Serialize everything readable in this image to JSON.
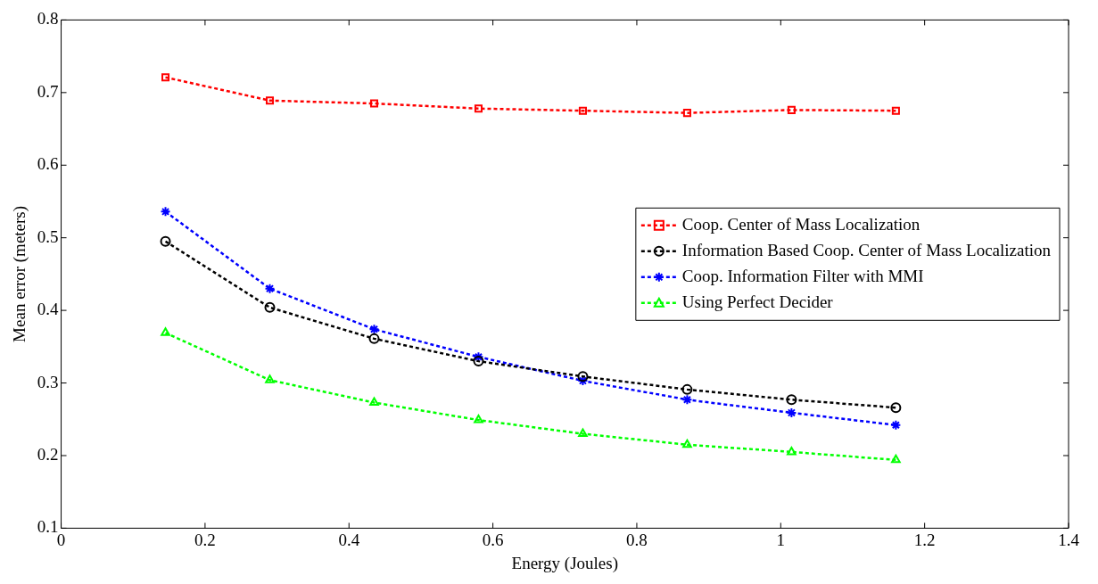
{
  "chart_data": {
    "type": "line",
    "xlabel": "Energy (Joules)",
    "ylabel": "Mean error (meters)",
    "x": [
      0.145,
      0.29,
      0.435,
      0.58,
      0.725,
      0.87,
      1.015,
      1.16
    ],
    "series": [
      {
        "name": "Coop. Center of Mass Localization",
        "color": "#ff0000",
        "marker": "square",
        "values": [
          0.721,
          0.689,
          0.685,
          0.678,
          0.675,
          0.672,
          0.676,
          0.675
        ]
      },
      {
        "name": "Information Based Coop. Center of Mass Localization",
        "color": "#000000",
        "marker": "circle",
        "values": [
          0.495,
          0.404,
          0.361,
          0.33,
          0.309,
          0.291,
          0.277,
          0.266
        ]
      },
      {
        "name": "Coop. Information Filter with MMI",
        "color": "#0000ff",
        "marker": "cross",
        "values": [
          0.536,
          0.43,
          0.374,
          0.336,
          0.303,
          0.277,
          0.259,
          0.242
        ]
      },
      {
        "name": "Using Perfect Decider",
        "color": "#00ff00",
        "marker": "triangle",
        "values": [
          0.369,
          0.304,
          0.273,
          0.249,
          0.23,
          0.215,
          0.205,
          0.194
        ]
      }
    ],
    "xlim": [
      0,
      1.4
    ],
    "xticks": [
      0,
      0.2,
      0.4,
      0.6,
      0.8,
      1,
      1.2,
      1.4
    ],
    "ylim": [
      0.1,
      0.8
    ],
    "yticks": [
      0.1,
      0.2,
      0.3,
      0.4,
      0.5,
      0.6,
      0.7,
      0.8
    ],
    "grid": false,
    "legend": "right",
    "line_style": "dashed"
  }
}
